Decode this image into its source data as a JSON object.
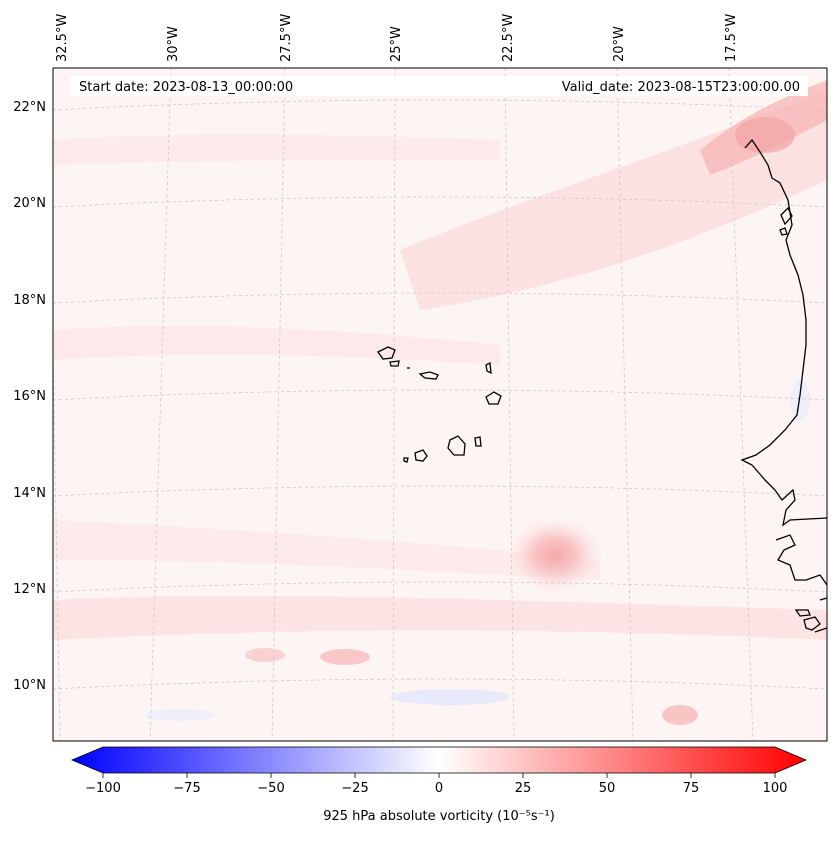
{
  "map": {
    "start_label": "Start date: 2023-08-13_00:00:00",
    "valid_label": "Valid_date: 2023-08-15T23:00:00.00",
    "lon_labels": [
      "32.5°W",
      "30°W",
      "27.5°W",
      "25°W",
      "22.5°W",
      "20°W",
      "17.5°W"
    ],
    "lat_labels": [
      "22°N",
      "20°N",
      "18°N",
      "16°N",
      "14°N",
      "12°N",
      "10°N"
    ]
  },
  "colorbar": {
    "label": "925 hPa absolute vorticity (10⁻⁵s⁻¹)",
    "min": -100,
    "max": 100,
    "ticks": [
      "−100",
      "−75",
      "−50",
      "−25",
      "0",
      "25",
      "50",
      "75",
      "100"
    ],
    "tick_values": [
      -100,
      -75,
      -50,
      -25,
      0,
      25,
      50,
      75,
      100
    ],
    "negative_color": "#0000ff",
    "positive_color": "#ff0000",
    "neutral_color": "#ffffff"
  },
  "colors": {
    "background": "#fdf5f5",
    "coast": "#000000",
    "grid": "#c8c8c8"
  }
}
